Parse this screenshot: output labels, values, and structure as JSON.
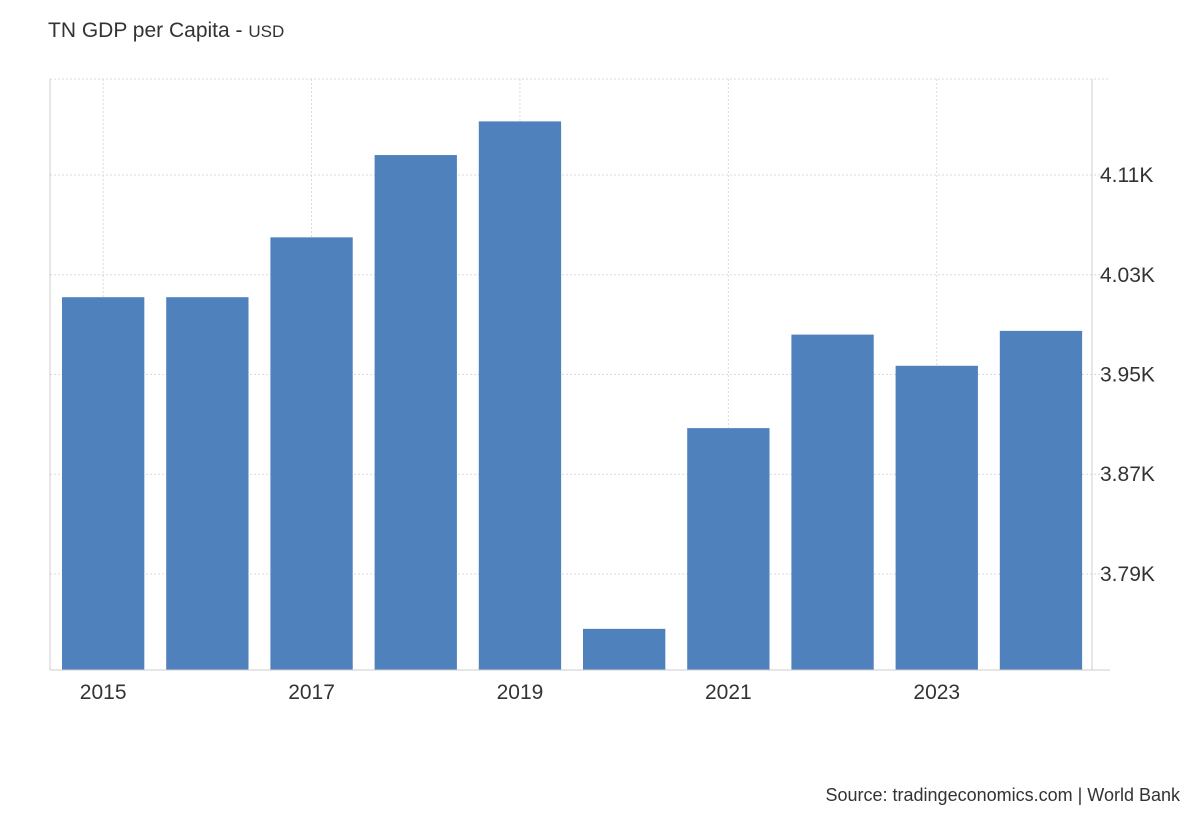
{
  "chart_data": {
    "type": "bar",
    "title": "TN GDP per Capita",
    "unit": "USD",
    "title_separator": " - ",
    "categories": [
      "2015",
      "2016",
      "2017",
      "2018",
      "2019",
      "2020",
      "2021",
      "2022",
      "2023",
      "2024"
    ],
    "values": [
      4012,
      4012,
      4060,
      4126,
      4153,
      3746,
      3907,
      3982,
      3957,
      3985
    ],
    "x_tick_labels": [
      "2015",
      "",
      "2017",
      "",
      "2019",
      "",
      "2021",
      "",
      "2023",
      ""
    ],
    "y_ticks": [
      3790,
      3870,
      3950,
      4030,
      4110
    ],
    "y_tick_labels": [
      "3.79K",
      "3.87K",
      "3.95K",
      "4.03K",
      "4.11K"
    ],
    "ylim": [
      3713,
      4187
    ],
    "xlabel": "",
    "ylabel": "",
    "grid": true,
    "y_axis_position": "right",
    "legend": false,
    "bar_color": "#4f81bd",
    "grid_color": "#d9d9d9",
    "axis_color": "#cccccc"
  },
  "source": "Source: tradingeconomics.com | World Bank"
}
